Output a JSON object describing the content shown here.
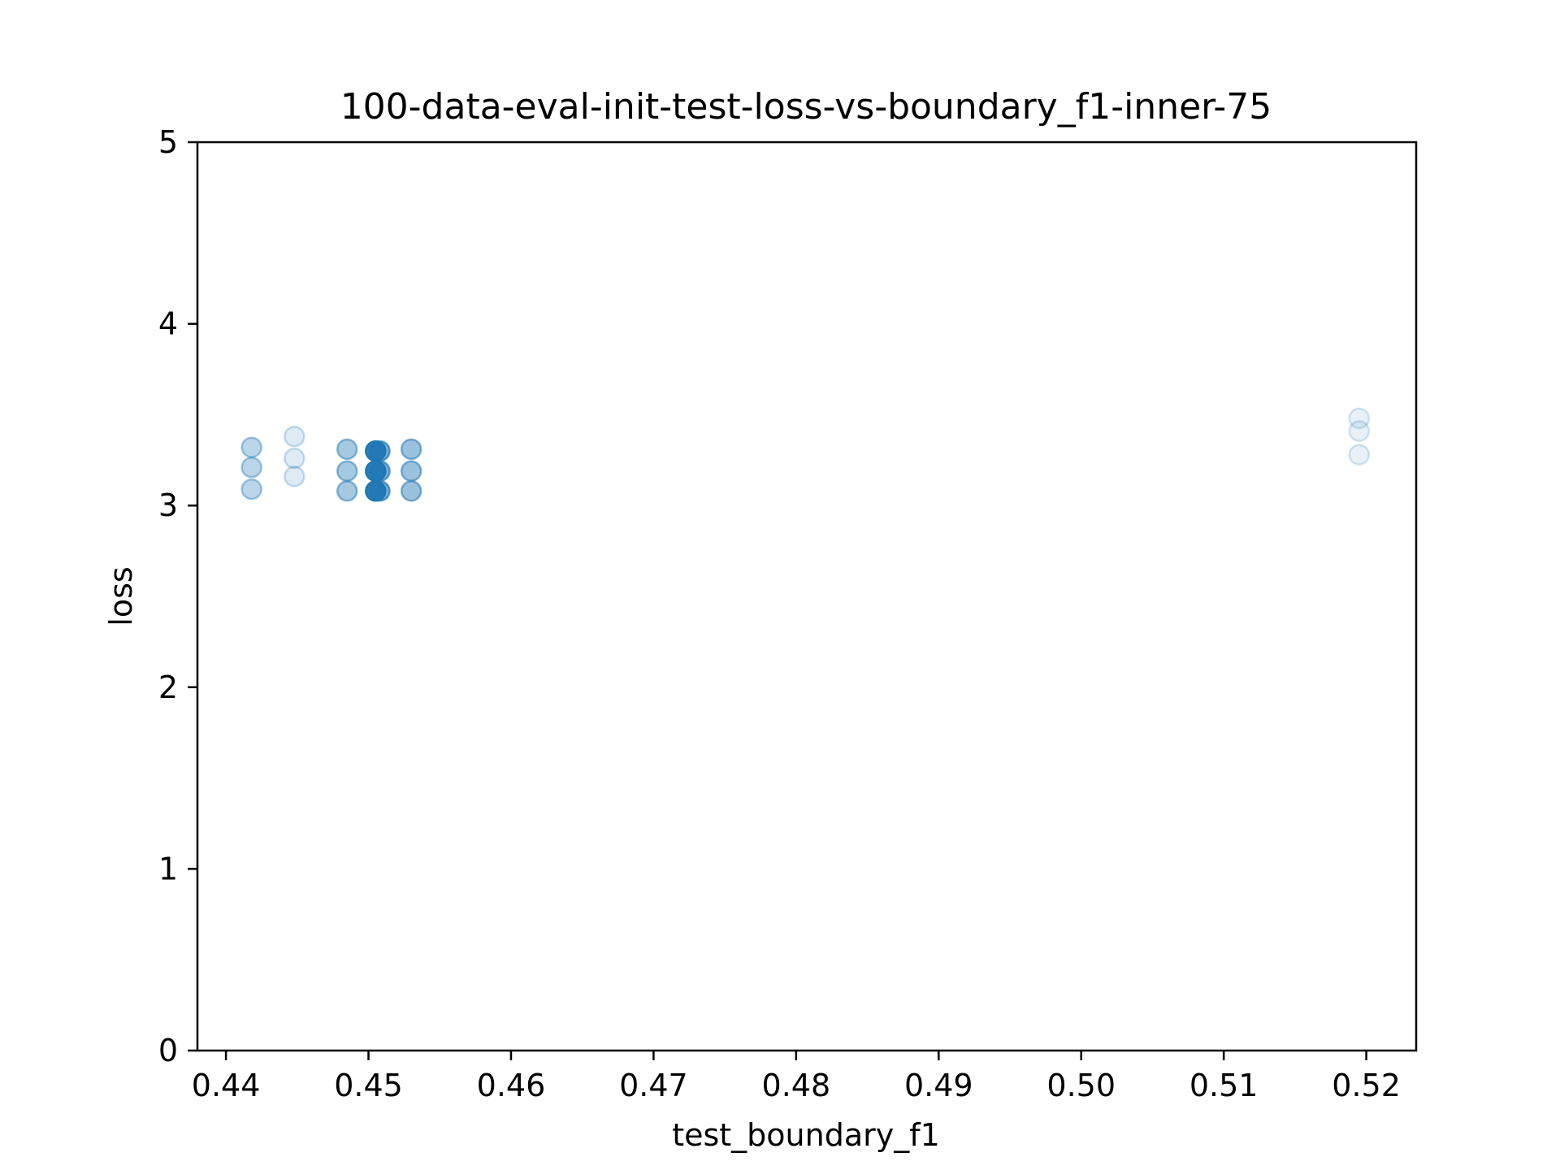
{
  "chart_data": {
    "type": "scatter",
    "title": "100-data-eval-init-test-loss-vs-boundary_f1-inner-75",
    "xlabel": "test_boundary_f1",
    "ylabel": "loss",
    "xlim": [
      0.438,
      0.5235
    ],
    "ylim": [
      0,
      5
    ],
    "xticks": [
      "0.44",
      "0.45",
      "0.46",
      "0.47",
      "0.48",
      "0.49",
      "0.50",
      "0.51",
      "0.52"
    ],
    "yticks": [
      "0",
      "1",
      "2",
      "3",
      "4",
      "5"
    ],
    "grid": false,
    "legend": "none",
    "marker_color": "#1f77b4",
    "points": [
      {
        "x": 0.4418,
        "y": 3.32,
        "opacity": 0.3
      },
      {
        "x": 0.4418,
        "y": 3.21,
        "opacity": 0.3
      },
      {
        "x": 0.4418,
        "y": 3.09,
        "opacity": 0.3
      },
      {
        "x": 0.4448,
        "y": 3.38,
        "opacity": 0.15
      },
      {
        "x": 0.4448,
        "y": 3.26,
        "opacity": 0.15
      },
      {
        "x": 0.4448,
        "y": 3.16,
        "opacity": 0.15
      },
      {
        "x": 0.4485,
        "y": 3.31,
        "opacity": 0.4
      },
      {
        "x": 0.4485,
        "y": 3.19,
        "opacity": 0.4
      },
      {
        "x": 0.4485,
        "y": 3.08,
        "opacity": 0.4
      },
      {
        "x": 0.4505,
        "y": 3.3,
        "opacity": 0.95
      },
      {
        "x": 0.4505,
        "y": 3.19,
        "opacity": 0.95
      },
      {
        "x": 0.4505,
        "y": 3.08,
        "opacity": 0.95
      },
      {
        "x": 0.4508,
        "y": 3.3,
        "opacity": 0.6
      },
      {
        "x": 0.4508,
        "y": 3.19,
        "opacity": 0.6
      },
      {
        "x": 0.4508,
        "y": 3.08,
        "opacity": 0.6
      },
      {
        "x": 0.453,
        "y": 3.31,
        "opacity": 0.45
      },
      {
        "x": 0.453,
        "y": 3.19,
        "opacity": 0.45
      },
      {
        "x": 0.453,
        "y": 3.08,
        "opacity": 0.45
      },
      {
        "x": 0.5195,
        "y": 3.48,
        "opacity": 0.1
      },
      {
        "x": 0.5195,
        "y": 3.41,
        "opacity": 0.1
      },
      {
        "x": 0.5195,
        "y": 3.28,
        "opacity": 0.1
      }
    ]
  }
}
